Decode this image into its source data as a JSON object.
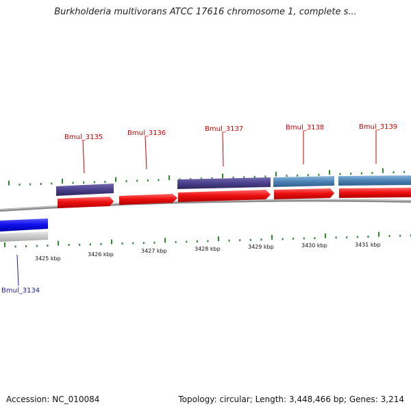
{
  "title": "Burkholderia multivorans ATCC 17616 chromosome 1, complete s...",
  "footer": {
    "accession": "Accession: NC_010084",
    "summary": "Topology: circular; Length: 3,448,466 bp; Genes: 3,214"
  },
  "scale": {
    "kbp_labels": [
      "3425 kbp",
      "3426 kbp",
      "3427 kbp",
      "3428 kbp",
      "3429 kbp",
      "3430 kbp",
      "3431 kbp"
    ]
  },
  "genes": [
    {
      "name": "Bmul_3134",
      "label_color": "#1a1aa0"
    },
    {
      "name": "Bmul_3135",
      "label_color": "#cc0000"
    },
    {
      "name": "Bmul_3136",
      "label_color": "#cc0000"
    },
    {
      "name": "Bmul_3137",
      "label_color": "#cc0000"
    },
    {
      "name": "Bmul_3138",
      "label_color": "#cc0000"
    },
    {
      "name": "Bmul_3139",
      "label_color": "#cc0000"
    }
  ],
  "colors": {
    "forward_gene": "#ee1111",
    "reverse_gene": "#1111ee",
    "cog_purple": "#4a3f8a",
    "cog_steel": "#4b83b5",
    "backbone": "#8c8c8c",
    "tick": "#2a8a2a"
  }
}
